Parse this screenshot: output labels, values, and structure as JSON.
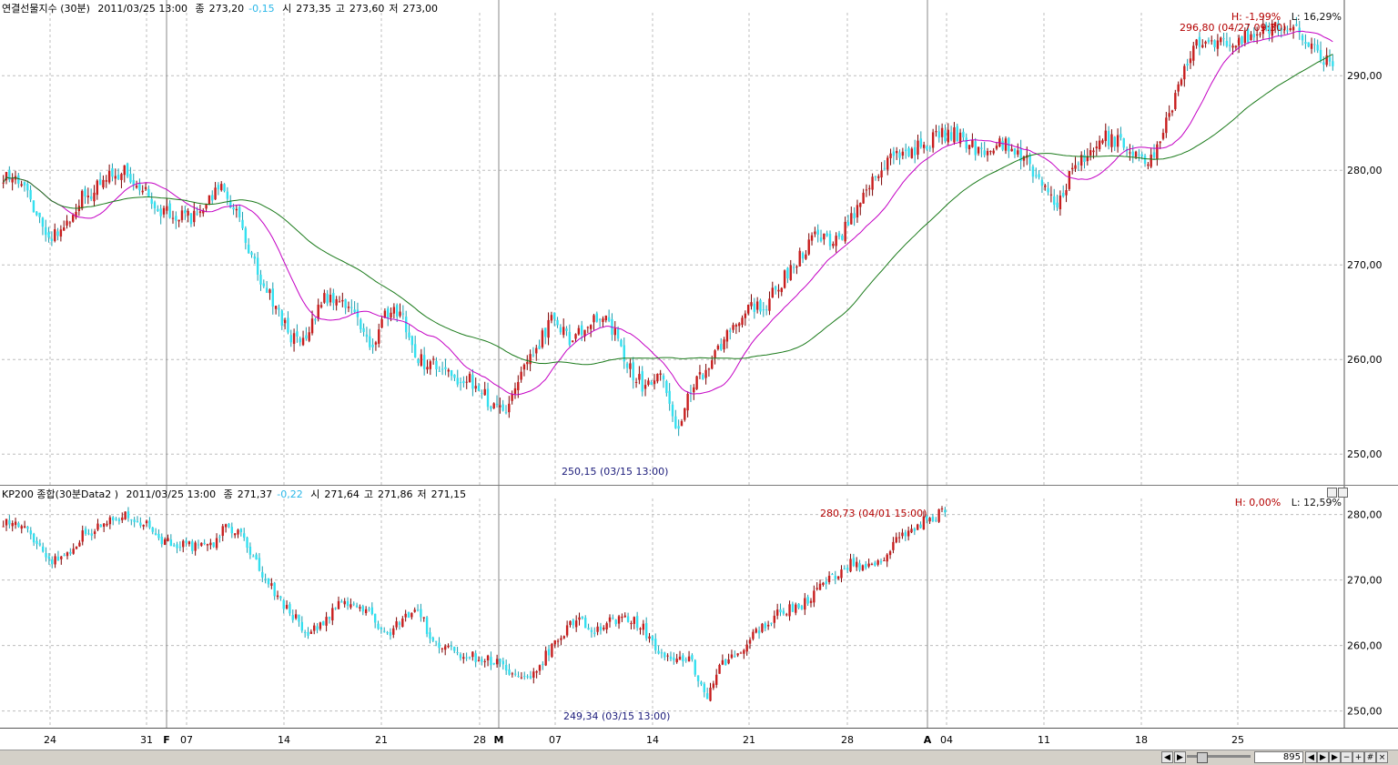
{
  "top_header": {
    "name": "연결선물지수 (30분)",
    "datetime": "2011/03/25 13:00",
    "close_label": "종",
    "close": "273,20",
    "change": "-0,15",
    "open_label": "시",
    "open": "273,35",
    "high_label": "고",
    "high": "273,60",
    "low_label": "저",
    "low": "273,00"
  },
  "top_hl": {
    "h": "H: -1,99%",
    "l": "L: 16,29%"
  },
  "top_annot_high": "296,80 (04/27 09:30)",
  "top_annot_low": "250,15 (03/15 13:00)",
  "bottom_header": {
    "name": "KP200 종합(30분Data2 )",
    "datetime": "2011/03/25 13:00",
    "close_label": "종",
    "close": "271,37",
    "change": "-0,22",
    "open_label": "시",
    "open": "271,64",
    "high_label": "고",
    "high": "271,86",
    "low_label": "저",
    "low": "271,15"
  },
  "bottom_hl": {
    "h": "H: 0,00%",
    "l": "L: 12,59%"
  },
  "bottom_annot_high": "280,73 (04/01 15:00)",
  "bottom_annot_low": "249,34 (03/15 13:00)",
  "status": {
    "count": "895"
  },
  "colors": {
    "up": "#c81e1e",
    "down": "#33e0f0",
    "ma_short": "#c400c4",
    "ma_long": "#1a7a1a",
    "grid": "#bdbdbd"
  },
  "chart_data": [
    {
      "type": "candlestick",
      "title": "연결선물지수 (30분)",
      "ylim": [
        248,
        298
      ],
      "y_ticks": [
        "250,00",
        "260,00",
        "270,00",
        "280,00",
        "290,00"
      ],
      "x_ticks": [
        {
          "label": "24",
          "bold": false
        },
        {
          "label": "31",
          "bold": false
        },
        {
          "label": "F",
          "bold": true
        },
        {
          "label": "07",
          "bold": false
        },
        {
          "label": "14",
          "bold": false
        },
        {
          "label": "21",
          "bold": false
        },
        {
          "label": "28",
          "bold": false
        },
        {
          "label": "M",
          "bold": true
        },
        {
          "label": "07",
          "bold": false
        },
        {
          "label": "14",
          "bold": false
        },
        {
          "label": "21",
          "bold": false
        },
        {
          "label": "28",
          "bold": false
        },
        {
          "label": "A",
          "bold": true
        },
        {
          "label": "04",
          "bold": false
        },
        {
          "label": "11",
          "bold": false
        },
        {
          "label": "18",
          "bold": false
        },
        {
          "label": "25",
          "bold": false
        }
      ],
      "close_anchors": [
        279.5,
        279.0,
        276.0,
        273.0,
        274.0,
        277.0,
        278.0,
        279.5,
        279.8,
        278.5,
        276.0,
        275.5,
        275.0,
        275.0,
        278.5,
        276.5,
        272.0,
        268.0,
        265.0,
        262.0,
        263.0,
        266.5,
        266.0,
        265.0,
        261.0,
        264.5,
        265.5,
        260.0,
        259.5,
        258.5,
        258.0,
        257.5,
        255.0,
        254.5,
        258.5,
        261.5,
        264.5,
        262.0,
        263.5,
        264.5,
        263.0,
        259.0,
        257.0,
        258.5,
        252.0,
        257.0,
        258.5,
        261.5,
        264.0,
        265.5,
        266.0,
        268.5,
        270.5,
        273.0,
        272.5,
        273.5,
        276.5,
        279.5,
        281.0,
        282.0,
        282.5,
        283.5,
        284.0,
        283.0,
        282.0,
        283.0,
        282.5,
        281.0,
        278.0,
        276.5,
        280.0,
        281.5,
        283.5,
        283.0,
        282.0,
        280.5,
        285.0,
        289.0,
        293.5,
        293.0,
        293.5,
        294.0,
        294.5,
        295.0,
        295.0,
        294.5,
        292.5,
        291.0
      ]
    },
    {
      "type": "candlestick",
      "title": "KP200 종합(30분Data2 )",
      "ylim": [
        248,
        283
      ],
      "y_ticks": [
        "250,00",
        "260,00",
        "270,00",
        "280,00"
      ],
      "close_anchors": [
        279.0,
        278.5,
        276.0,
        273.0,
        274.0,
        277.0,
        278.0,
        279.5,
        279.8,
        278.5,
        276.0,
        275.5,
        275.0,
        275.0,
        278.5,
        276.5,
        272.0,
        268.0,
        265.0,
        262.0,
        263.0,
        266.5,
        266.0,
        265.0,
        261.0,
        264.5,
        265.5,
        260.0,
        259.5,
        258.5,
        258.0,
        257.5,
        255.0,
        254.5,
        258.5,
        261.5,
        264.5,
        262.0,
        263.5,
        264.5,
        263.0,
        259.0,
        257.0,
        258.5,
        251.5,
        257.0,
        258.5,
        261.5,
        264.0,
        265.5,
        266.0,
        268.5,
        270.5,
        272.5,
        272.0,
        273.0,
        276.0,
        278.0,
        279.5,
        280.5
      ]
    }
  ]
}
